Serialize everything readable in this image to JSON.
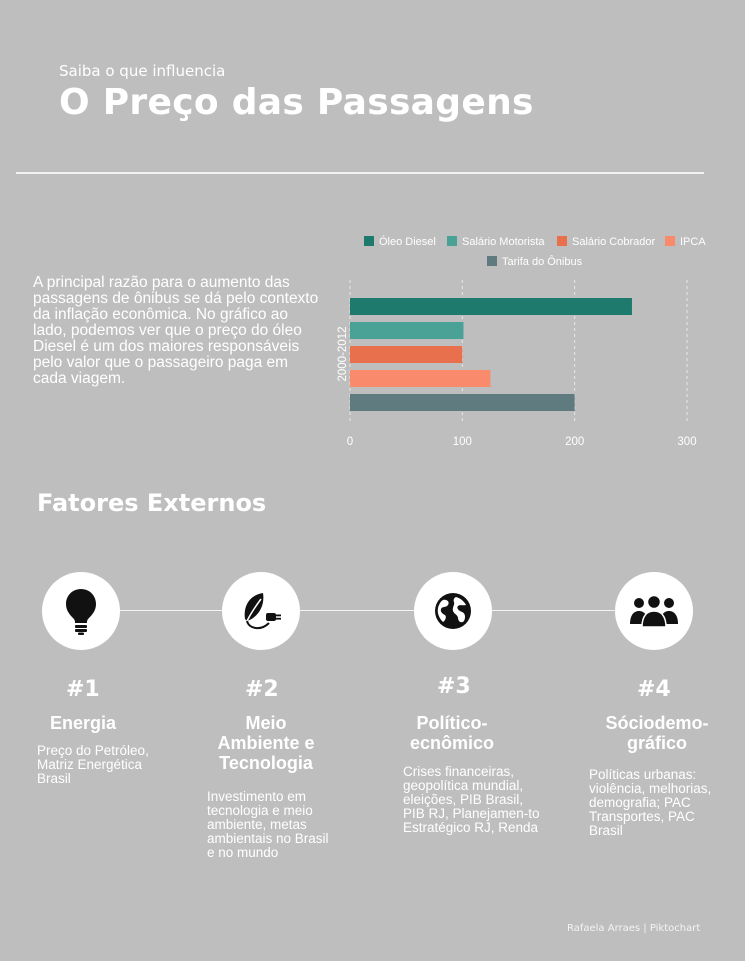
{
  "header": {
    "subtitle": "Saiba o que influencia",
    "title": "O Preço das Passagens"
  },
  "intro": {
    "text": "A principal razão para o aumento das passagens de ônibus se dá pelo contexto da inflação econômica. No gráfico ao lado, podemos ver que o preço do óleo Diesel é um dos maiores responsáveis pelo valor que o passageiro paga em cada viagem."
  },
  "chart_data": {
    "type": "bar",
    "orientation": "horizontal",
    "categories": [
      "2000-2012"
    ],
    "series": [
      {
        "name": "Óleo Diesel",
        "values": [
          251
        ],
        "color": "#1e7a6d"
      },
      {
        "name": "Salário Motorista",
        "values": [
          101
        ],
        "color": "#4aa296"
      },
      {
        "name": "Salário Cobrador",
        "values": [
          100
        ],
        "color": "#e8704d"
      },
      {
        "name": "IPCA",
        "values": [
          125
        ],
        "color": "#fa8a6c"
      },
      {
        "name": "Tarifa do Ônibus",
        "values": [
          200
        ],
        "color": "#5f7b7f"
      }
    ],
    "x_ticks": [
      "0",
      "100",
      "200",
      "300"
    ],
    "xlim": [
      0,
      300
    ],
    "grid": true,
    "legend_position": "top"
  },
  "factors": {
    "title": "Fatores Externos",
    "items": [
      {
        "number": "#1",
        "name": "Energia",
        "icon": "lightbulb-icon",
        "desc": "Preço do Petróleo, Matriz Energética Brasil"
      },
      {
        "number": "#2",
        "name": "Meio Ambiente e Tecnologia",
        "icon": "leaf-plug-icon",
        "desc": "Investimento em tecnologia e meio ambiente, metas ambientais no Brasil e no mundo"
      },
      {
        "number": "#3",
        "name": "Político-ecnômico",
        "icon": "globe-icon",
        "desc": "Crises financeiras, geopolítica mundial, eleições, PIB Brasil, PIB RJ, Planejamen-to Estratégico RJ, Renda"
      },
      {
        "number": "#4",
        "name": "Sóciodemo-gráfico",
        "icon": "people-group-icon",
        "desc": "Políticas urbanas: violência, melhorias, demografia; PAC Transportes, PAC Brasil"
      }
    ]
  },
  "footer": {
    "credit": "Rafaela  Arraes | Piktochart"
  }
}
